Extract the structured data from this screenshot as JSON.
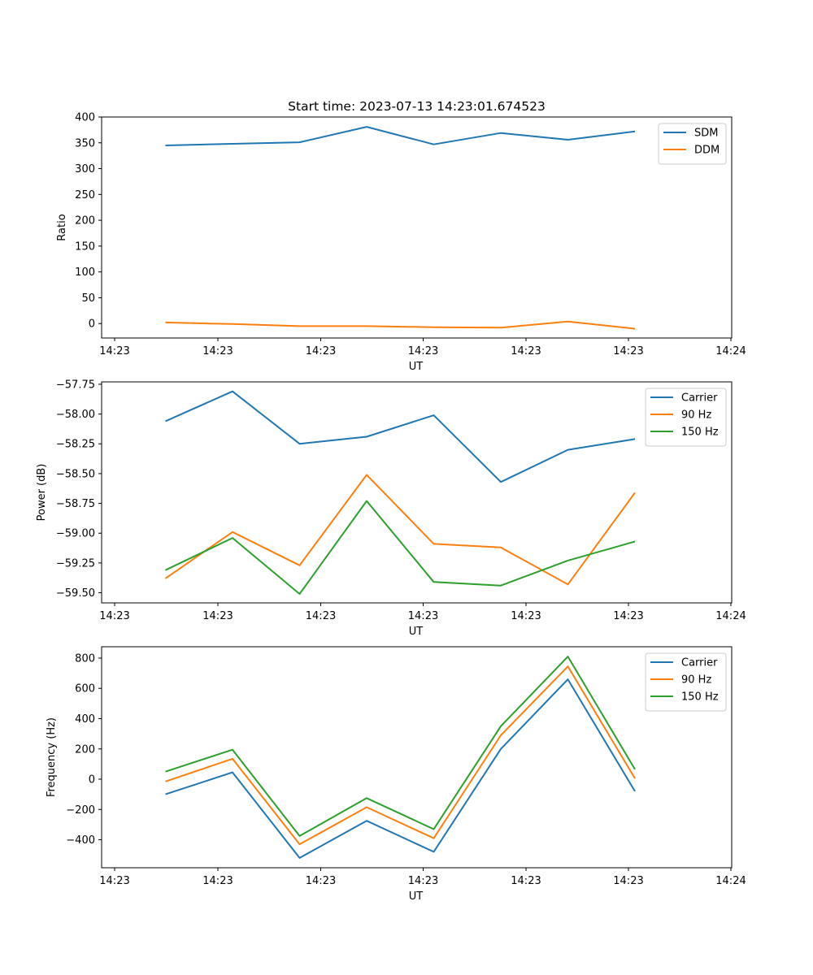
{
  "chart_data": [
    {
      "type": "line",
      "title": "Start time: 2023-07-13 14:23:01.674523",
      "xlabel": "UT",
      "ylabel": "Ratio",
      "x_tick_labels": [
        "14:23",
        "14:23",
        "14:23",
        "14:23",
        "14:23",
        "14:23",
        "14:24"
      ],
      "ylim": [
        -28,
        400
      ],
      "y_ticks": [
        0,
        50,
        100,
        150,
        200,
        250,
        300,
        350,
        400
      ],
      "y_tick_labels": [
        "0",
        "50",
        "100",
        "150",
        "200",
        "250",
        "300",
        "350",
        "400"
      ],
      "legend_position": "top-right",
      "grid": false,
      "series": [
        {
          "name": "SDM",
          "color": "#1f77b4",
          "values": [
            345,
            348,
            351,
            381,
            347,
            369,
            356,
            372
          ]
        },
        {
          "name": "DDM",
          "color": "#ff7f0e",
          "values": [
            2,
            -1,
            -5,
            -5,
            -7,
            -8,
            4,
            -10
          ]
        }
      ]
    },
    {
      "type": "line",
      "title": "",
      "xlabel": "UT",
      "ylabel": "Power (dB)",
      "x_tick_labels": [
        "14:23",
        "14:23",
        "14:23",
        "14:23",
        "14:23",
        "14:23",
        "14:24"
      ],
      "ylim": [
        -59.585,
        -57.73
      ],
      "y_ticks": [
        -57.75,
        -58.0,
        -58.25,
        -58.5,
        -58.75,
        -59.0,
        -59.25,
        -59.5
      ],
      "y_tick_labels": [
        "−57.75",
        "−58.00",
        "−58.25",
        "−58.50",
        "−58.75",
        "−59.00",
        "−59.25",
        "−59.50"
      ],
      "legend_position": "top-right",
      "grid": false,
      "series": [
        {
          "name": "Carrier",
          "color": "#1f77b4",
          "values": [
            -58.06,
            -57.81,
            -58.25,
            -58.19,
            -58.01,
            -58.57,
            -58.3,
            -58.21
          ]
        },
        {
          "name": "90 Hz",
          "color": "#ff7f0e",
          "values": [
            -59.38,
            -58.99,
            -59.27,
            -58.51,
            -59.09,
            -59.12,
            -59.43,
            -58.66
          ]
        },
        {
          "name": "150 Hz",
          "color": "#2ca02c",
          "values": [
            -59.31,
            -59.04,
            -59.51,
            -58.73,
            -59.41,
            -59.44,
            -59.23,
            -59.07
          ]
        }
      ]
    },
    {
      "type": "line",
      "title": "",
      "xlabel": "UT",
      "ylabel": "Frequency (Hz)",
      "x_tick_labels": [
        "14:23",
        "14:23",
        "14:23",
        "14:23",
        "14:23",
        "14:23",
        "14:24"
      ],
      "ylim": [
        -585,
        875
      ],
      "y_ticks": [
        -400,
        -200,
        0,
        200,
        400,
        600,
        800
      ],
      "y_tick_labels": [
        "−400",
        "−200",
        "0",
        "200",
        "400",
        "600",
        "800"
      ],
      "legend_position": "top-right",
      "grid": false,
      "series": [
        {
          "name": "Carrier",
          "color": "#1f77b4",
          "values": [
            -100,
            45,
            -520,
            -275,
            -480,
            200,
            660,
            -80
          ]
        },
        {
          "name": "90 Hz",
          "color": "#ff7f0e",
          "values": [
            -15,
            135,
            -430,
            -185,
            -390,
            290,
            745,
            5
          ]
        },
        {
          "name": "150 Hz",
          "color": "#2ca02c",
          "values": [
            50,
            195,
            -375,
            -125,
            -330,
            350,
            810,
            65
          ]
        }
      ]
    }
  ]
}
